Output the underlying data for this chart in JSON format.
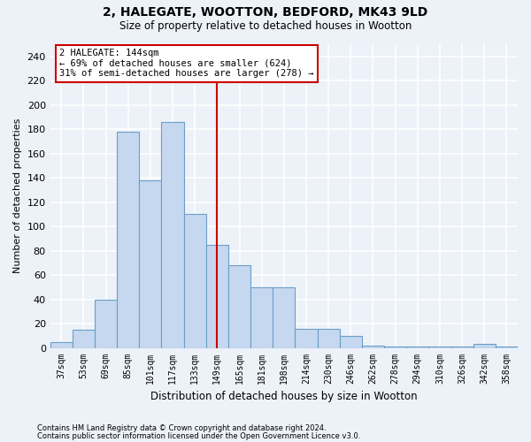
{
  "title_line1": "2, HALEGATE, WOOTTON, BEDFORD, MK43 9LD",
  "title_line2": "Size of property relative to detached houses in Wootton",
  "xlabel": "Distribution of detached houses by size in Wootton",
  "ylabel": "Number of detached properties",
  "categories": [
    "37sqm",
    "53sqm",
    "69sqm",
    "85sqm",
    "101sqm",
    "117sqm",
    "133sqm",
    "149sqm",
    "165sqm",
    "181sqm",
    "198sqm",
    "214sqm",
    "230sqm",
    "246sqm",
    "262sqm",
    "278sqm",
    "294sqm",
    "310sqm",
    "326sqm",
    "342sqm",
    "358sqm"
  ],
  "values": [
    5,
    15,
    40,
    178,
    138,
    186,
    110,
    85,
    68,
    50,
    50,
    16,
    16,
    10,
    2,
    1,
    1,
    1,
    1,
    3,
    1
  ],
  "bar_color": "#c5d8ef",
  "bar_edge_color": "#6b9ec8",
  "vline_color": "#cc0000",
  "vline_x": 7.0,
  "annotation_line1": "2 HALEGATE: 144sqm",
  "annotation_line2": "← 69% of detached houses are smaller (624)",
  "annotation_line3": "31% of semi-detached houses are larger (278) →",
  "annotation_box_color": "#ffffff",
  "annotation_box_edge": "#cc0000",
  "ylim": [
    0,
    250
  ],
  "yticks": [
    0,
    20,
    40,
    60,
    80,
    100,
    120,
    140,
    160,
    180,
    200,
    220,
    240
  ],
  "footnote1": "Contains HM Land Registry data © Crown copyright and database right 2024.",
  "footnote2": "Contains public sector information licensed under the Open Government Licence v3.0.",
  "bg_color": "#edf2f9",
  "grid_color": "#ffffff"
}
